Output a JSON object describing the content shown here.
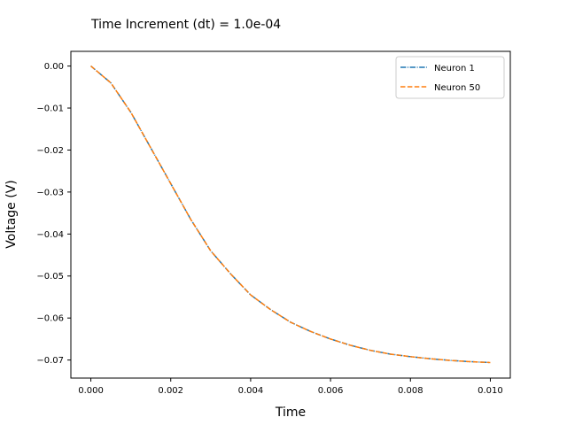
{
  "chart_data": {
    "type": "line",
    "title": "Time Increment (dt) = 1.0e-04",
    "xlabel": "Time",
    "ylabel": "Voltage (V)",
    "xlim": [
      -0.0005,
      0.0105
    ],
    "ylim": [
      -0.0743,
      0.0035
    ],
    "x_ticks": [
      0.0,
      0.002,
      0.004,
      0.006,
      0.008,
      0.01
    ],
    "x_tick_labels": [
      "0.000",
      "0.002",
      "0.004",
      "0.006",
      "0.008",
      "0.010"
    ],
    "y_ticks": [
      0.0,
      -0.01,
      -0.02,
      -0.03,
      -0.04,
      -0.05,
      -0.06,
      -0.07
    ],
    "y_tick_labels": [
      "0.00",
      "−0.01",
      "−0.02",
      "−0.03",
      "−0.04",
      "−0.05",
      "−0.06",
      "−0.07"
    ],
    "grid": false,
    "legend_position": "top-right",
    "series": [
      {
        "name": "Neuron 1",
        "color": "#1f77b4",
        "dash": "dashdot",
        "x": [
          0.0,
          0.0005,
          0.001,
          0.0015,
          0.002,
          0.0025,
          0.003,
          0.0035,
          0.004,
          0.0045,
          0.005,
          0.0055,
          0.006,
          0.0065,
          0.007,
          0.0075,
          0.008,
          0.0085,
          0.009,
          0.0095,
          0.01
        ],
        "y": [
          0.0,
          -0.004,
          -0.011,
          -0.0195,
          -0.028,
          -0.0365,
          -0.044,
          -0.0495,
          -0.0545,
          -0.058,
          -0.061,
          -0.0632,
          -0.065,
          -0.0665,
          -0.0677,
          -0.0686,
          -0.0692,
          -0.0697,
          -0.0701,
          -0.0704,
          -0.0706
        ]
      },
      {
        "name": "Neuron 50",
        "color": "#ff7f0e",
        "dash": "dashed",
        "x": [
          0.0,
          0.0005,
          0.001,
          0.0015,
          0.002,
          0.0025,
          0.003,
          0.0035,
          0.004,
          0.0045,
          0.005,
          0.0055,
          0.006,
          0.0065,
          0.007,
          0.0075,
          0.008,
          0.0085,
          0.009,
          0.0095,
          0.01
        ],
        "y": [
          0.0,
          -0.004,
          -0.011,
          -0.0195,
          -0.028,
          -0.0365,
          -0.044,
          -0.0495,
          -0.0545,
          -0.058,
          -0.061,
          -0.0632,
          -0.065,
          -0.0665,
          -0.0677,
          -0.0686,
          -0.0692,
          -0.0697,
          -0.0701,
          -0.0704,
          -0.0706
        ]
      }
    ]
  }
}
